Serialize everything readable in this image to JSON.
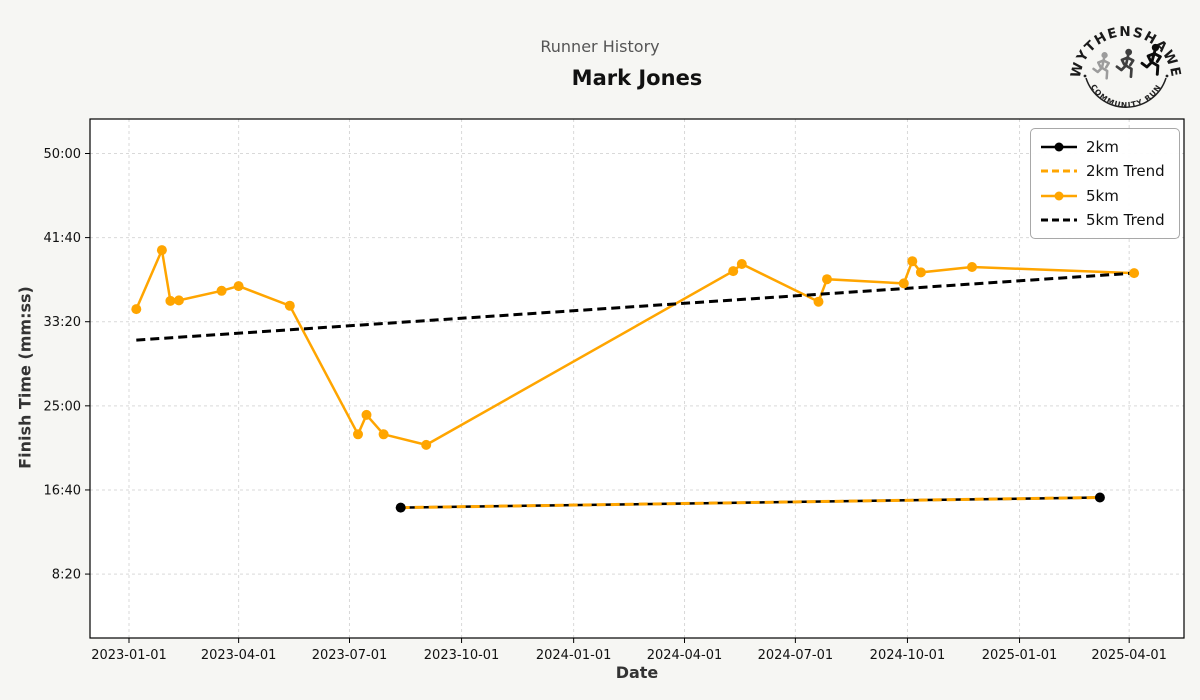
{
  "logo": {
    "top_text": "WYTHENSHAWE",
    "bottom_text": "COMMUNITY RUN"
  },
  "chart_data": {
    "type": "line",
    "suptitle": "Runner History",
    "title": "Mark Jones",
    "xlabel": "Date",
    "ylabel": "Finish Time (mm:ss)",
    "grid": true,
    "x_axis": {
      "min": "2022-11-30",
      "max": "2025-05-16",
      "ticks": [
        "2023-01-01",
        "2023-04-01",
        "2023-07-01",
        "2023-10-01",
        "2024-01-01",
        "2024-04-01",
        "2024-07-01",
        "2024-10-01",
        "2025-01-01",
        "2025-04-01"
      ]
    },
    "y_axis": {
      "min_seconds": 120,
      "max_seconds": 3205,
      "ticks": [
        "50:00",
        "41:40",
        "33:20",
        "25:00",
        "16:40",
        "8:20"
      ]
    },
    "colors": {
      "orange": "#FFA500",
      "black": "#000000",
      "gridline": "#d9d9d9"
    },
    "series": [
      {
        "name": "2km",
        "color": "#000000",
        "line": "solid",
        "markers": true,
        "width": 2.5,
        "points": [
          {
            "date": "2023-08-12",
            "time": "14:55"
          },
          {
            "date": "2025-03-08",
            "time": "15:55"
          }
        ]
      },
      {
        "name": "2km Trend",
        "color": "#FFA500",
        "line": "dashed",
        "markers": false,
        "width": 3,
        "points": [
          {
            "date": "2023-08-12",
            "time": "14:55"
          },
          {
            "date": "2025-03-08",
            "time": "15:55"
          }
        ]
      },
      {
        "name": "5km",
        "color": "#FFA500",
        "line": "solid",
        "markers": true,
        "width": 2.5,
        "points": [
          {
            "date": "2023-01-07",
            "time": "34:35"
          },
          {
            "date": "2023-01-28",
            "time": "40:26"
          },
          {
            "date": "2023-02-04",
            "time": "35:24"
          },
          {
            "date": "2023-02-11",
            "time": "35:27"
          },
          {
            "date": "2023-03-18",
            "time": "36:24"
          },
          {
            "date": "2023-04-01",
            "time": "36:52"
          },
          {
            "date": "2023-05-13",
            "time": "34:55"
          },
          {
            "date": "2023-07-08",
            "time": "22:11"
          },
          {
            "date": "2023-07-15",
            "time": "24:06"
          },
          {
            "date": "2023-07-29",
            "time": "22:11"
          },
          {
            "date": "2023-09-02",
            "time": "21:08"
          },
          {
            "date": "2024-05-11",
            "time": "38:21"
          },
          {
            "date": "2024-05-18",
            "time": "39:03"
          },
          {
            "date": "2024-07-20",
            "time": "35:19"
          },
          {
            "date": "2024-07-27",
            "time": "37:33"
          },
          {
            "date": "2024-09-28",
            "time": "37:08"
          },
          {
            "date": "2024-10-05",
            "time": "39:20"
          },
          {
            "date": "2024-10-12",
            "time": "38:13"
          },
          {
            "date": "2024-11-23",
            "time": "38:45"
          },
          {
            "date": "2025-04-05",
            "time": "38:09"
          }
        ]
      },
      {
        "name": "5km Trend",
        "color": "#000000",
        "line": "dashed",
        "markers": false,
        "width": 3,
        "points": [
          {
            "date": "2023-01-07",
            "time": "31:31"
          },
          {
            "date": "2025-04-05",
            "time": "38:09"
          }
        ]
      }
    ],
    "legend": {
      "position": "upper right",
      "items": [
        "2km",
        "2km Trend",
        "5km",
        "5km Trend"
      ]
    }
  }
}
